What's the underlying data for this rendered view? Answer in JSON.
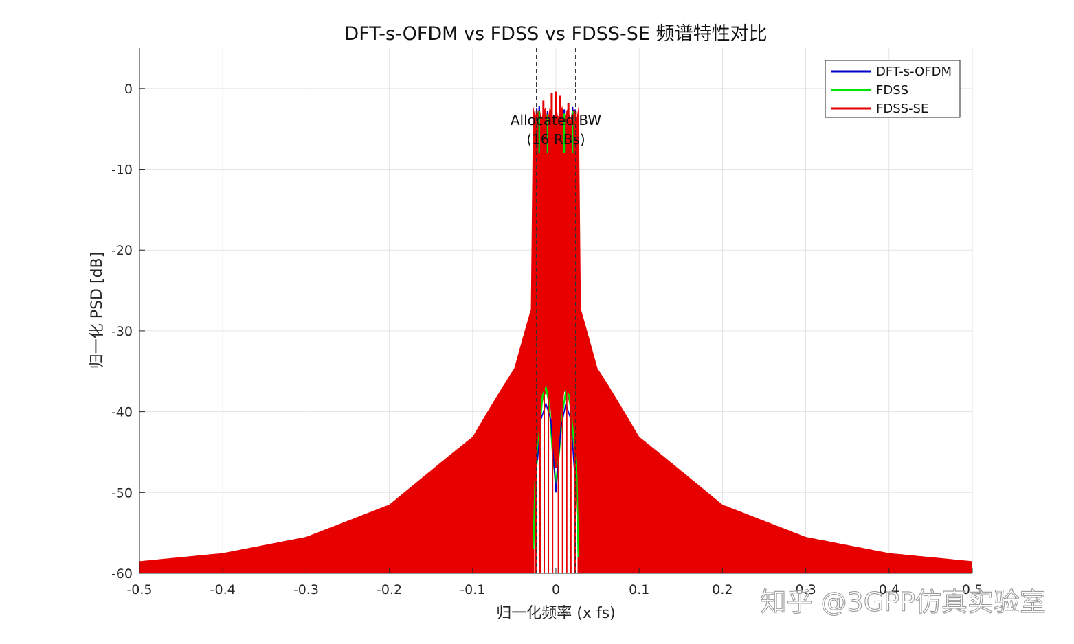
{
  "chart_data": {
    "type": "area",
    "title": "DFT-s-OFDM vs FDSS vs FDSS-SE 频谱特性对比",
    "xlabel": "归一化频率 (x fs)",
    "ylabel": "归一化 PSD [dB]",
    "xlim": [
      -0.5,
      0.5
    ],
    "ylim": [
      -60,
      5
    ],
    "xticks": [
      -0.5,
      -0.4,
      -0.3,
      -0.2,
      -0.1,
      0,
      0.1,
      0.2,
      0.3,
      0.4,
      0.5
    ],
    "xtick_labels": [
      "-0.5",
      "-0.4",
      "-0.3",
      "-0.2",
      "-0.1",
      "0",
      "0.1",
      "0.2",
      "0.3",
      "0.4",
      "0.5"
    ],
    "yticks": [
      0,
      -10,
      -20,
      -30,
      -40,
      -50,
      -60
    ],
    "ytick_labels": [
      "0",
      "-10",
      "-20",
      "-30",
      "-40",
      "-50",
      "-60"
    ],
    "grid": true,
    "legend": "top-right",
    "series": [
      {
        "name": "DFT-s-OFDM",
        "color": "#0000c8",
        "x": [
          -0.023,
          -0.02,
          -0.01,
          0,
          0.01,
          0.02,
          0.023
        ],
        "y": [
          -2.5,
          -2.2,
          -2.8,
          -2.4,
          -2.6,
          -2.3,
          -2.6
        ],
        "envelope_x": [
          -0.5,
          -0.4,
          -0.3,
          -0.2,
          -0.1,
          -0.05,
          -0.03,
          0.03,
          0.05,
          0.1,
          0.2,
          0.3,
          0.4,
          0.5
        ],
        "envelope_y": [
          -58.5,
          -57.5,
          -55.5,
          -51.5,
          -43,
          -34,
          -26,
          -26,
          -34,
          -43,
          -51.5,
          -55.5,
          -57.5,
          -58.5
        ]
      },
      {
        "name": "FDSS",
        "color": "#00e600",
        "x": [
          -0.023,
          -0.02,
          -0.01,
          0,
          0.01,
          0.02,
          0.023
        ],
        "y": [
          -3.0,
          -2.8,
          -3.2,
          -2.9,
          -3.1,
          -2.8,
          -3.0
        ],
        "envelope_x": [
          -0.5,
          -0.4,
          -0.3,
          -0.2,
          -0.1,
          -0.05,
          -0.03,
          0.03,
          0.05,
          0.1,
          0.2,
          0.3,
          0.4,
          0.5
        ],
        "envelope_y": [
          -58.5,
          -57.5,
          -55.5,
          -51.5,
          -43,
          -34,
          -26,
          -26,
          -34,
          -43,
          -51.5,
          -55.5,
          -57.5,
          -58.5
        ]
      },
      {
        "name": "FDSS-SE",
        "color": "#e60000",
        "x": [
          -0.023,
          -0.015,
          -0.005,
          0,
          0.005,
          0.015,
          0.023
        ],
        "y": [
          -2.8,
          -1.5,
          -0.6,
          -0.4,
          -0.9,
          -1.8,
          -2.8
        ],
        "envelope_x": [
          -0.5,
          -0.4,
          -0.3,
          -0.2,
          -0.1,
          -0.05,
          -0.03,
          0.03,
          0.05,
          0.1,
          0.2,
          0.3,
          0.4,
          0.5
        ],
        "envelope_y": [
          -58.5,
          -57.5,
          -55.5,
          -51.5,
          -43,
          -34,
          -26,
          -26,
          -34,
          -43,
          -51.5,
          -55.5,
          -57.5,
          -58.5
        ]
      }
    ],
    "band_edges": [
      -0.0235,
      0.0235
    ],
    "annotation": [
      "Allocated BW",
      "(16 RBs)"
    ],
    "watermark": "知乎 @3GPP仿真实验室"
  }
}
